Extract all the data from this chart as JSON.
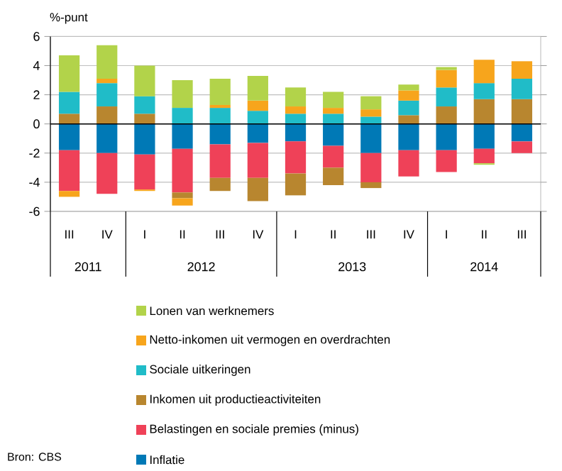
{
  "chart_data": {
    "type": "bar",
    "stacked": true,
    "ylabel": "%-punt",
    "categories": [
      "III",
      "IV",
      "I",
      "II",
      "III",
      "IV",
      "I",
      "II",
      "III",
      "IV",
      "I",
      "II",
      "III"
    ],
    "series": [
      {
        "name": "Inflatie",
        "color": "#0079b6",
        "values": [
          -1.8,
          -2.0,
          -2.1,
          -1.7,
          -1.4,
          -1.3,
          -1.2,
          -1.5,
          -2.0,
          -1.8,
          -1.8,
          -1.7,
          -1.2
        ]
      },
      {
        "name": "Belastingen en sociale premies (minus)",
        "color": "#ef4158",
        "values": [
          -2.8,
          -2.8,
          -2.4,
          -3.0,
          -2.3,
          -2.4,
          -2.2,
          -1.5,
          -2.0,
          -1.8,
          -1.5,
          -1.0,
          -0.8
        ]
      },
      {
        "name": "Inkomen uit productieactiviteiten",
        "color": "#b8862f",
        "values": [
          0.7,
          1.2,
          0.7,
          -0.4,
          -0.9,
          -1.6,
          -1.5,
          -1.2,
          -0.4,
          0.6,
          1.2,
          1.7,
          1.7
        ]
      },
      {
        "name": "Sociale uitkeringen",
        "color": "#20bcc8",
        "values": [
          1.5,
          1.6,
          1.2,
          1.1,
          1.1,
          0.9,
          0.7,
          0.7,
          0.5,
          1.0,
          1.3,
          1.1,
          1.4
        ]
      },
      {
        "name": "Netto-inkomen uit vermogen en overdrachten",
        "color": "#f7a51c",
        "values": [
          -0.4,
          0.3,
          -0.1,
          -0.5,
          0.2,
          0.7,
          0.5,
          0.4,
          0.5,
          0.7,
          1.2,
          1.6,
          1.2
        ]
      },
      {
        "name": "Lonen van werknemers",
        "color": "#b2d34a",
        "values": [
          2.5,
          2.3,
          2.1,
          1.9,
          1.8,
          1.7,
          1.3,
          1.1,
          0.9,
          0.4,
          0.2,
          -0.1,
          0
        ]
      }
    ],
    "ylim": [
      -6,
      6
    ],
    "yticks": [
      -6,
      -4,
      -2,
      0,
      2,
      4,
      6
    ],
    "grid": "y",
    "legend": "bottom",
    "annotations": [
      "2011",
      "2012",
      "2013",
      "2014",
      "Bron: CBS"
    ]
  }
}
